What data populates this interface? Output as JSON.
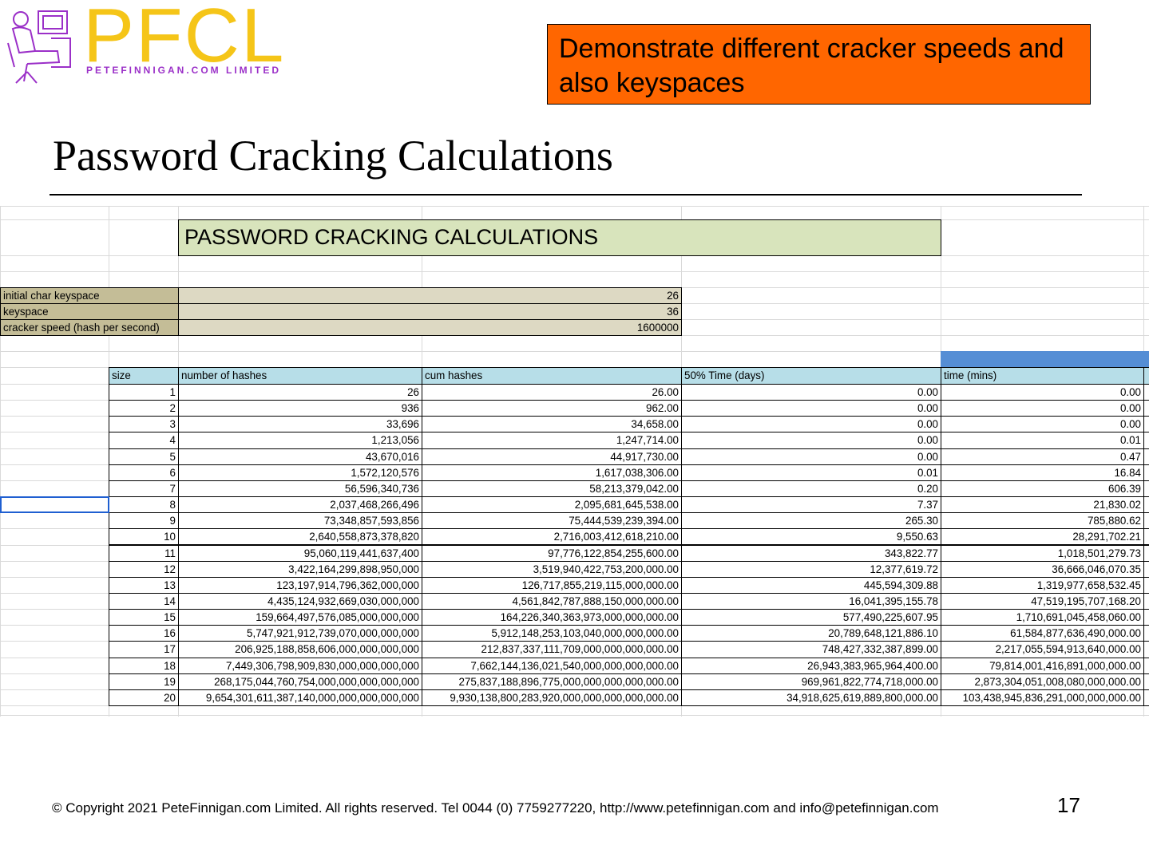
{
  "logo": {
    "brand": "PFCL",
    "tagline": "PETEFINNIGAN.COM LIMITED"
  },
  "callout": "Demonstrate different cracker speeds and also keyspaces",
  "title": "Password Cracking Calculations",
  "spreadsheet": {
    "title": "PASSWORD CRACKING CALCULATIONS",
    "params": [
      {
        "label": "initial char keyspace",
        "value": "26"
      },
      {
        "label": "keyspace",
        "value": "36"
      },
      {
        "label": "cracker speed (hash per second)",
        "value": "1600000"
      }
    ],
    "headers": [
      "size",
      "number of hashes",
      "cum hashes",
      "50% Time (days)",
      "time (mins)"
    ],
    "rows": [
      [
        "1",
        "26",
        "26.00",
        "0.00",
        "0.00"
      ],
      [
        "2",
        "936",
        "962.00",
        "0.00",
        "0.00"
      ],
      [
        "3",
        "33,696",
        "34,658.00",
        "0.00",
        "0.00"
      ],
      [
        "4",
        "1,213,056",
        "1,247,714.00",
        "0.00",
        "0.01"
      ],
      [
        "5",
        "43,670,016",
        "44,917,730.00",
        "0.00",
        "0.47"
      ],
      [
        "6",
        "1,572,120,576",
        "1,617,038,306.00",
        "0.01",
        "16.84"
      ],
      [
        "7",
        "56,596,340,736",
        "58,213,379,042.00",
        "0.20",
        "606.39"
      ],
      [
        "8",
        "2,037,468,266,496",
        "2,095,681,645,538.00",
        "7.37",
        "21,830.02"
      ],
      [
        "9",
        "73,348,857,593,856",
        "75,444,539,239,394.00",
        "265.30",
        "785,880.62"
      ],
      [
        "10",
        "2,640,558,873,378,820",
        "2,716,003,412,618,210.00",
        "9,550.63",
        "28,291,702.21"
      ],
      [
        "11",
        "95,060,119,441,637,400",
        "97,776,122,854,255,600.00",
        "343,822.77",
        "1,018,501,279.73"
      ],
      [
        "12",
        "3,422,164,299,898,950,000",
        "3,519,940,422,753,200,000.00",
        "12,377,619.72",
        "36,666,046,070.35"
      ],
      [
        "13",
        "123,197,914,796,362,000,000",
        "126,717,855,219,115,000,000.00",
        "445,594,309.88",
        "1,319,977,658,532.45"
      ],
      [
        "14",
        "4,435,124,932,669,030,000,000",
        "4,561,842,787,888,150,000,000.00",
        "16,041,395,155.78",
        "47,519,195,707,168.20"
      ],
      [
        "15",
        "159,664,497,576,085,000,000,000",
        "164,226,340,363,973,000,000,000.00",
        "577,490,225,607.95",
        "1,710,691,045,458,060.00"
      ],
      [
        "16",
        "5,747,921,912,739,070,000,000,000",
        "5,912,148,253,103,040,000,000,000.00",
        "20,789,648,121,886.10",
        "61,584,877,636,490,000.00"
      ],
      [
        "17",
        "206,925,188,858,606,000,000,000,000",
        "212,837,337,111,709,000,000,000,000.00",
        "748,427,332,387,899.00",
        "2,217,055,594,913,640,000.00"
      ],
      [
        "18",
        "7,449,306,798,909,830,000,000,000,000",
        "7,662,144,136,021,540,000,000,000,000.00",
        "26,943,383,965,964,400.00",
        "79,814,001,416,891,000,000.00"
      ],
      [
        "19",
        "268,175,044,760,754,000,000,000,000,000",
        "275,837,188,896,775,000,000,000,000,000.00",
        "969,961,822,774,718,000.00",
        "2,873,304,051,008,080,000,000.00"
      ],
      [
        "20",
        "9,654,301,611,387,140,000,000,000,000,000",
        "9,930,138,800,283,920,000,000,000,000,000.00",
        "34,918,625,619,889,800,000.00",
        "103,438,945,836,291,000,000,000.00"
      ]
    ]
  },
  "footer": {
    "copyright": "© Copyright  2021 PeteFinnigan.com Limited. All rights reserved. Tel 0044 (0) 7759277220, http://www.petefinnigan.com and info@petefinnigan.com",
    "page": "17"
  }
}
